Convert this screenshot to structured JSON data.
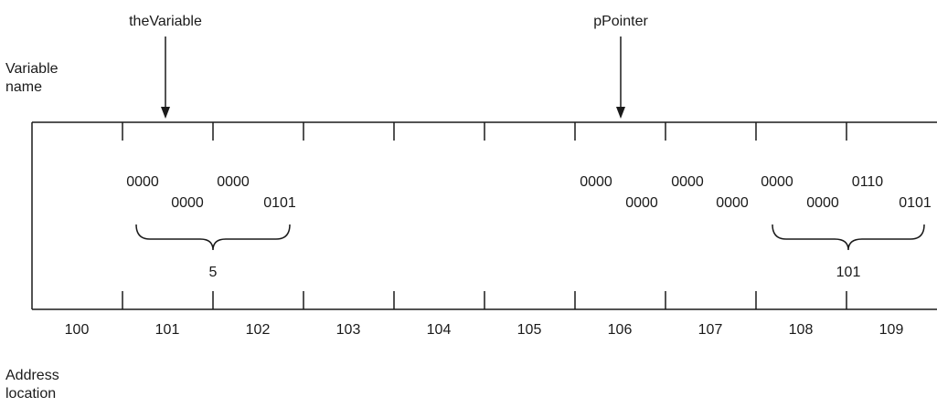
{
  "side_labels": {
    "variable_name": [
      "Variable",
      "name"
    ],
    "address_location": [
      "Address",
      "location"
    ]
  },
  "pointer_labels": {
    "the_variable": "theVariable",
    "p_pointer": "pPointer"
  },
  "addresses": [
    "100",
    "101",
    "102",
    "103",
    "104",
    "105",
    "106",
    "107",
    "108",
    "109"
  ],
  "bits": {
    "the_variable": [
      "0000",
      "0000",
      "0000",
      "0101"
    ],
    "p_pointer": [
      "0000",
      "0000",
      "0000",
      "0000",
      "0000",
      "0000",
      "0110",
      "0101"
    ]
  },
  "values": {
    "the_variable": "5",
    "p_pointer": "101"
  }
}
